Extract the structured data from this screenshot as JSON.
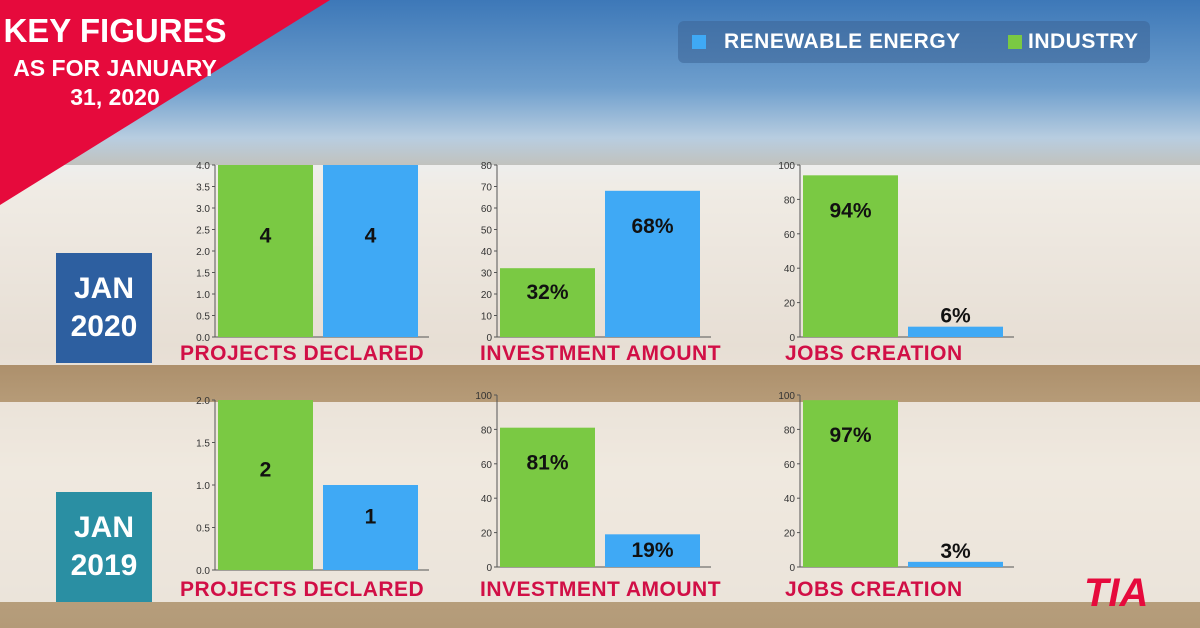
{
  "header": {
    "title_line1": "KEY FIGURES",
    "title_line2": "AS FOR JANUARY",
    "title_line3": "31, 2020"
  },
  "legend": {
    "items": [
      {
        "label": "RENEWABLE ENERGY",
        "color": "#3fa9f5"
      },
      {
        "label": "INDUSTRY",
        "color": "#7ac943"
      }
    ]
  },
  "rows": [
    {
      "year_line1": "JAN",
      "year_line2": "2020",
      "box_color": "#2d5fa0"
    },
    {
      "year_line1": "JAN",
      "year_line2": "2019",
      "box_color": "#2a8fa3"
    }
  ],
  "colors": {
    "industry": "#7ac943",
    "renewable": "#3fa9f5",
    "accent": "#e60a3c",
    "caption": "#d10f46"
  },
  "chart_data": [
    {
      "type": "bar",
      "title": "PROJECTS DECLARED",
      "year": "JAN 2020",
      "categories": [
        "INDUSTRY",
        "RENEWABLE ENERGY"
      ],
      "values": [
        4,
        4
      ],
      "labels": [
        "4",
        "4"
      ],
      "ylim": [
        0,
        4
      ],
      "yticks": [
        "0.0",
        "0.5",
        "1.0",
        "1.5",
        "2.0",
        "2.5",
        "3.0",
        "3.5",
        "4.0"
      ]
    },
    {
      "type": "bar",
      "title": "INVESTMENT AMOUNT",
      "year": "JAN 2020",
      "categories": [
        "INDUSTRY",
        "RENEWABLE ENERGY"
      ],
      "values": [
        32,
        68
      ],
      "labels": [
        "32%",
        "68%"
      ],
      "ylim": [
        0,
        80
      ],
      "yticks": [
        "0",
        "10",
        "20",
        "30",
        "40",
        "50",
        "60",
        "70",
        "80"
      ]
    },
    {
      "type": "bar",
      "title": "JOBS CREATION",
      "year": "JAN 2020",
      "categories": [
        "INDUSTRY",
        "RENEWABLE ENERGY"
      ],
      "values": [
        94,
        6
      ],
      "labels": [
        "94%",
        "6%"
      ],
      "ylim": [
        0,
        100
      ],
      "yticks": [
        "0",
        "20",
        "40",
        "60",
        "80",
        "100"
      ]
    },
    {
      "type": "bar",
      "title": "PROJECTS DECLARED",
      "year": "JAN 2019",
      "categories": [
        "INDUSTRY",
        "RENEWABLE ENERGY"
      ],
      "values": [
        2,
        1
      ],
      "labels": [
        "2",
        "1"
      ],
      "ylim": [
        0,
        2
      ],
      "yticks": [
        "0.0",
        "0.5",
        "1.0",
        "1.5",
        "2.0"
      ]
    },
    {
      "type": "bar",
      "title": "INVESTMENT AMOUNT",
      "year": "JAN 2019",
      "categories": [
        "INDUSTRY",
        "RENEWABLE ENERGY"
      ],
      "values": [
        81,
        19
      ],
      "labels": [
        "81%",
        "19%"
      ],
      "ylim": [
        0,
        100
      ],
      "yticks": [
        "0",
        "20",
        "40",
        "60",
        "80",
        "100"
      ]
    },
    {
      "type": "bar",
      "title": "JOBS CREATION",
      "year": "JAN 2019",
      "categories": [
        "INDUSTRY",
        "RENEWABLE ENERGY"
      ],
      "values": [
        97,
        3
      ],
      "labels": [
        "97%",
        "3%"
      ],
      "ylim": [
        0,
        100
      ],
      "yticks": [
        "0",
        "20",
        "40",
        "60",
        "80",
        "100"
      ]
    }
  ],
  "logo": {
    "text": "TIA"
  }
}
